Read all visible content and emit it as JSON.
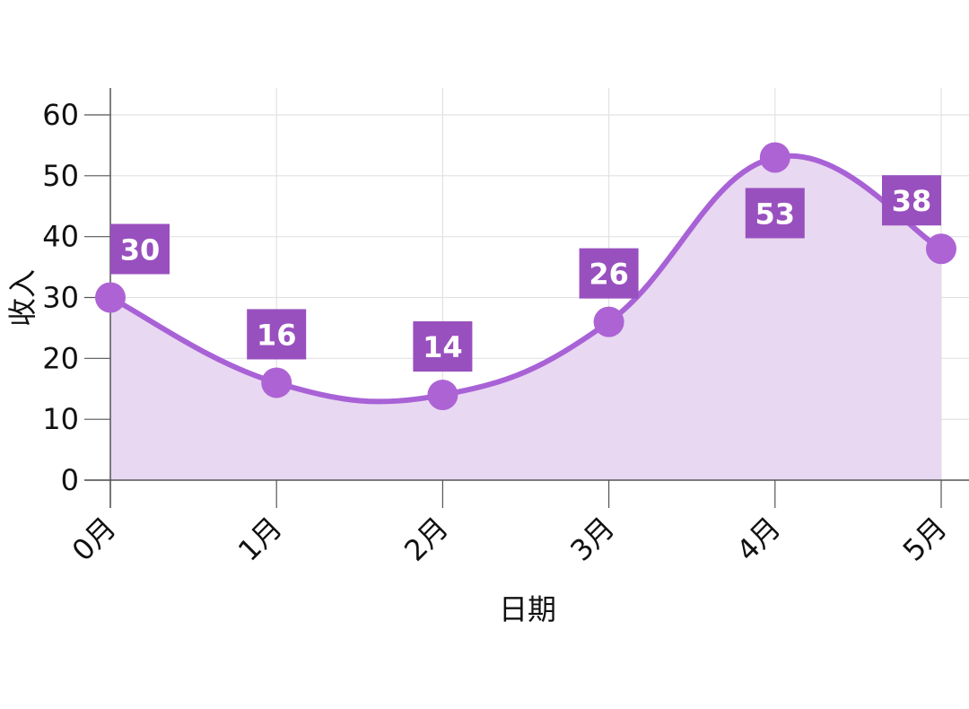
{
  "chart_data": {
    "type": "area",
    "categories": [
      "0月",
      "1月",
      "2月",
      "3月",
      "4月",
      "5月"
    ],
    "values": [
      30,
      16,
      14,
      26,
      53,
      38
    ],
    "data_labels": [
      "30",
      "16",
      "14",
      "26",
      "53",
      "38"
    ],
    "xlabel": "日期",
    "ylabel": "收入",
    "ylim": [
      0,
      60
    ],
    "yticks": [
      "0",
      "10",
      "20",
      "30",
      "40",
      "50",
      "60"
    ],
    "grid": true,
    "line_shape": "smooth",
    "colors": {
      "line": "#a862d6",
      "fill": "#e9d8f1",
      "marker": "#ad63d4",
      "label_bg": "#9950bf",
      "label_text": "#ffffff",
      "grid": "#e2e2e2",
      "axis": "#555555",
      "text": "#111111"
    }
  }
}
